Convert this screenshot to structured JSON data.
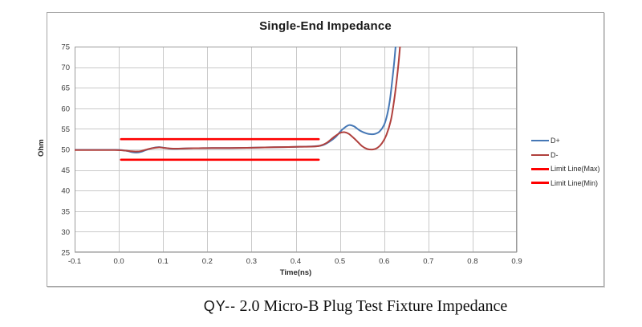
{
  "chart_data": {
    "type": "line",
    "title": "Single-End Impedance",
    "xlabel": "Time(ns)",
    "ylabel": "Ohm",
    "xlim": [
      -0.1,
      0.9
    ],
    "ylim": [
      25,
      75
    ],
    "x_ticks": [
      "-0.1",
      "0.0",
      "0.1",
      "0.2",
      "0.3",
      "0.4",
      "0.5",
      "0.6",
      "0.7",
      "0.8",
      "0.9"
    ],
    "y_ticks": [
      "75",
      "70",
      "65",
      "60",
      "55",
      "50",
      "45",
      "40",
      "35",
      "30",
      "25"
    ],
    "grid": true,
    "legend_position": "right",
    "colors": {
      "grid": "#c9c9c9",
      "plot_border": "#9b9b9b",
      "tick_text": "#3a3a3a"
    },
    "series": [
      {
        "name": "D+",
        "color": "#4577B5",
        "width": 2,
        "smooth": true,
        "points": [
          [
            -0.1,
            49.9
          ],
          [
            -0.05,
            49.9
          ],
          [
            -0.01,
            49.9
          ],
          [
            0.005,
            49.85
          ],
          [
            0.02,
            49.6
          ],
          [
            0.03,
            49.35
          ],
          [
            0.04,
            49.25
          ],
          [
            0.05,
            49.4
          ],
          [
            0.06,
            49.8
          ],
          [
            0.075,
            50.3
          ],
          [
            0.09,
            50.55
          ],
          [
            0.1,
            50.45
          ],
          [
            0.115,
            50.2
          ],
          [
            0.13,
            50.15
          ],
          [
            0.15,
            50.25
          ],
          [
            0.18,
            50.3
          ],
          [
            0.21,
            50.35
          ],
          [
            0.25,
            50.35
          ],
          [
            0.29,
            50.4
          ],
          [
            0.33,
            50.5
          ],
          [
            0.37,
            50.55
          ],
          [
            0.41,
            50.65
          ],
          [
            0.44,
            50.75
          ],
          [
            0.46,
            51.0
          ],
          [
            0.475,
            51.8
          ],
          [
            0.49,
            53.0
          ],
          [
            0.505,
            54.8
          ],
          [
            0.52,
            55.9
          ],
          [
            0.532,
            55.6
          ],
          [
            0.545,
            54.6
          ],
          [
            0.56,
            53.9
          ],
          [
            0.57,
            53.7
          ],
          [
            0.58,
            53.8
          ],
          [
            0.59,
            54.4
          ],
          [
            0.6,
            56.0
          ],
          [
            0.607,
            58.5
          ],
          [
            0.613,
            62.0
          ],
          [
            0.618,
            66.5
          ],
          [
            0.623,
            71.5
          ],
          [
            0.627,
            76.5
          ]
        ]
      },
      {
        "name": "D-",
        "color": "#B0403D",
        "width": 2,
        "smooth": true,
        "points": [
          [
            -0.1,
            49.85
          ],
          [
            -0.05,
            49.85
          ],
          [
            -0.01,
            49.85
          ],
          [
            0.005,
            49.8
          ],
          [
            0.02,
            49.65
          ],
          [
            0.03,
            49.55
          ],
          [
            0.04,
            49.5
          ],
          [
            0.05,
            49.6
          ],
          [
            0.06,
            49.9
          ],
          [
            0.075,
            50.3
          ],
          [
            0.09,
            50.5
          ],
          [
            0.1,
            50.4
          ],
          [
            0.115,
            50.25
          ],
          [
            0.13,
            50.2
          ],
          [
            0.15,
            50.25
          ],
          [
            0.18,
            50.3
          ],
          [
            0.21,
            50.35
          ],
          [
            0.25,
            50.35
          ],
          [
            0.29,
            50.4
          ],
          [
            0.33,
            50.5
          ],
          [
            0.37,
            50.55
          ],
          [
            0.41,
            50.65
          ],
          [
            0.44,
            50.7
          ],
          [
            0.455,
            50.9
          ],
          [
            0.47,
            51.6
          ],
          [
            0.485,
            52.9
          ],
          [
            0.5,
            54.0
          ],
          [
            0.51,
            54.2
          ],
          [
            0.52,
            53.8
          ],
          [
            0.535,
            52.4
          ],
          [
            0.55,
            50.8
          ],
          [
            0.562,
            50.1
          ],
          [
            0.575,
            50.0
          ],
          [
            0.585,
            50.4
          ],
          [
            0.595,
            51.5
          ],
          [
            0.605,
            53.5
          ],
          [
            0.615,
            57.0
          ],
          [
            0.622,
            61.5
          ],
          [
            0.628,
            66.5
          ],
          [
            0.633,
            71.5
          ],
          [
            0.637,
            76.5
          ]
        ]
      },
      {
        "name": "Limit Line(Max)",
        "color": "#FE0000",
        "width": 2.6,
        "smooth": false,
        "points": [
          [
            0.005,
            52.5
          ],
          [
            0.452,
            52.5
          ]
        ]
      },
      {
        "name": "Limit Line(Min)",
        "color": "#FE0000",
        "width": 2.6,
        "smooth": false,
        "points": [
          [
            0.005,
            47.5
          ],
          [
            0.452,
            47.5
          ]
        ]
      }
    ]
  },
  "caption": {
    "prefix": "QY--",
    "text": "2.0 Micro-B Plug Test Fixture Impedance"
  }
}
